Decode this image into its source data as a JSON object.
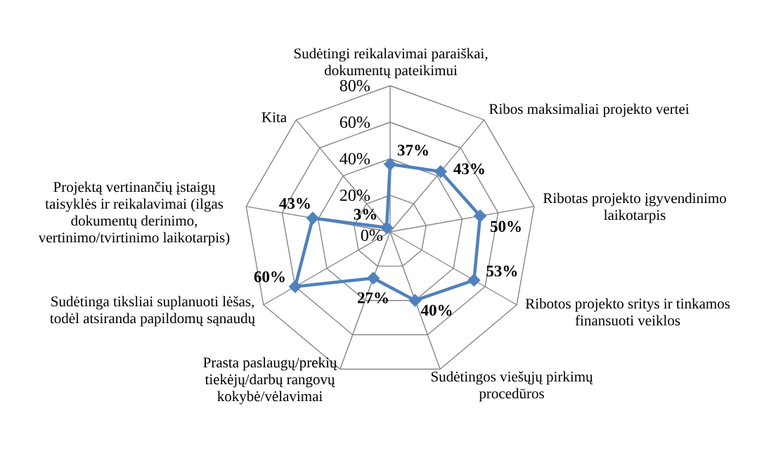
{
  "chart_data": {
    "type": "radar",
    "categories": [
      "Sudėtingi reikalavimai paraiškai, dokumentų pateikimui",
      "Ribos maksimaliai projekto vertei",
      "Ribotas projekto įgyvendinimo laikotarpis",
      "Ribotos projekto sritys ir tinkamos finansuoti veiklos",
      "Sudėtingos viešųjų pirkimų procedūros",
      "Prasta paslaugų/prekių tiekėjų/darbų rangovų kokybė/vėlavimai",
      "Sudėtinga tiksliai suplanuoti lėšas, todėl atsiranda papildomų sąnaudų",
      "Projektą vertinančių įstaigų taisyklės ir reikalavimai (ilgas dokumentų derinimo, vertinimo/tvirtinimo laikotarpis)",
      "Kita"
    ],
    "series": [
      {
        "color": "#4f81bd",
        "values": [
          37,
          43,
          50,
          53,
          40,
          27,
          60,
          43,
          3
        ],
        "value_labels": [
          "37%",
          "43%",
          "50%",
          "53%",
          "40%",
          "27%",
          "60%",
          "43%",
          "3%"
        ]
      }
    ],
    "ylim": [
      0,
      80
    ],
    "yticks": [
      {
        "value": 0,
        "label": "0%"
      },
      {
        "value": 20,
        "label": "20%"
      },
      {
        "value": 40,
        "label": "40%"
      },
      {
        "value": 60,
        "label": "60%"
      },
      {
        "value": 80,
        "label": "80%"
      }
    ],
    "grid": true,
    "marker": "diamond"
  }
}
